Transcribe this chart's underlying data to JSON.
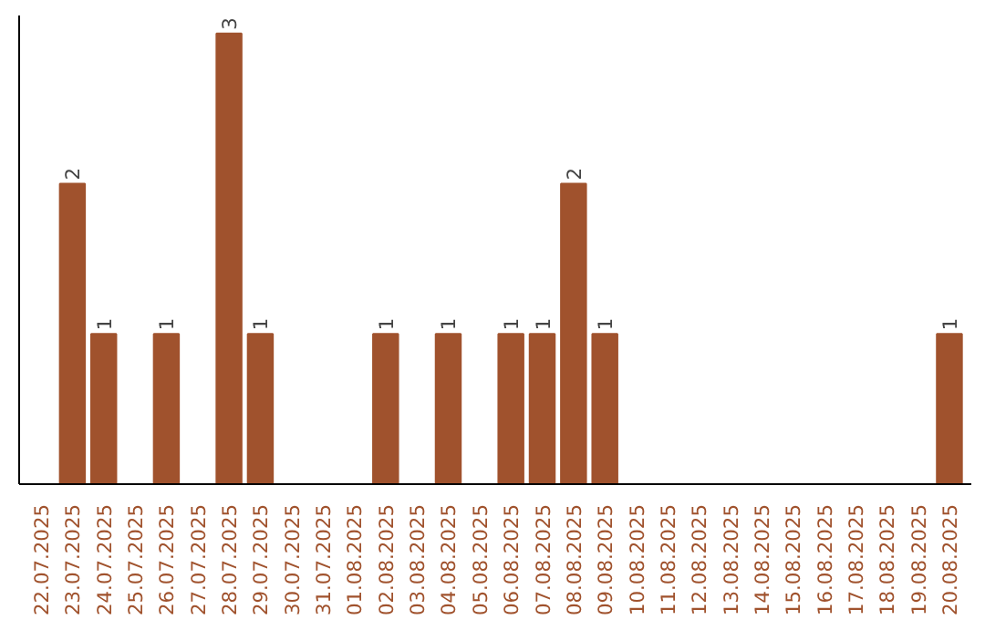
{
  "chart_data": {
    "type": "bar",
    "categories": [
      "22.07.2025",
      "23.07.2025",
      "24.07.2025",
      "25.07.2025",
      "26.07.2025",
      "27.07.2025",
      "28.07.2025",
      "29.07.2025",
      "30.07.2025",
      "31.07.2025",
      "01.08.2025",
      "02.08.2025",
      "03.08.2025",
      "04.08.2025",
      "05.08.2025",
      "06.08.2025",
      "07.08.2025",
      "08.08.2025",
      "09.08.2025",
      "10.08.2025",
      "11.08.2025",
      "12.08.2025",
      "13.08.2025",
      "14.08.2025",
      "15.08.2025",
      "16.08.2025",
      "17.08.2025",
      "18.08.2025",
      "19.08.2025",
      "20.08.2025"
    ],
    "values": [
      0,
      2,
      1,
      0,
      1,
      0,
      3,
      1,
      0,
      0,
      0,
      1,
      0,
      1,
      0,
      1,
      1,
      2,
      1,
      0,
      0,
      0,
      0,
      0,
      0,
      0,
      0,
      0,
      0,
      1
    ],
    "value_labels": [
      null,
      "2",
      "1",
      null,
      "1",
      null,
      "3",
      "1",
      null,
      null,
      null,
      "1",
      null,
      "1",
      null,
      "1",
      "1",
      "2",
      "1",
      null,
      null,
      null,
      null,
      null,
      null,
      null,
      null,
      null,
      null,
      "1"
    ],
    "color": "#a0522d"
  }
}
